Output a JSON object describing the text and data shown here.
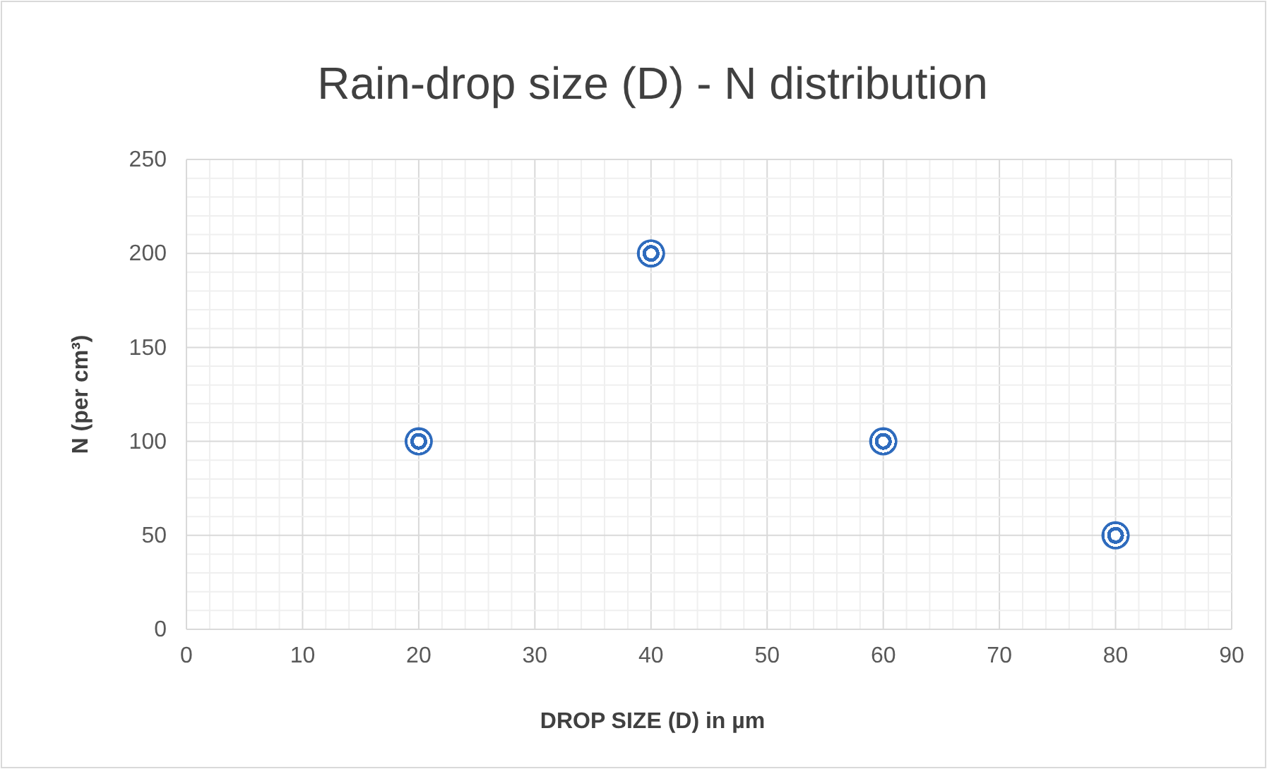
{
  "chart_data": {
    "type": "scatter",
    "title": "Rain-drop size (D) - N distribution",
    "xlabel": "DROP SIZE (D) in µm",
    "ylabel": "N (per cm³)",
    "x": [
      20,
      40,
      60,
      80
    ],
    "series": [
      {
        "color": "#2e6bbd",
        "values": [
          100,
          200,
          100,
          50
        ]
      }
    ],
    "xlim": [
      0,
      90
    ],
    "xticks": [
      0,
      10,
      20,
      30,
      40,
      50,
      60,
      70,
      80,
      90
    ],
    "ylim": [
      0,
      250
    ],
    "yticks": [
      0,
      50,
      100,
      150,
      200,
      250
    ],
    "grid": true,
    "marker": "circle"
  }
}
